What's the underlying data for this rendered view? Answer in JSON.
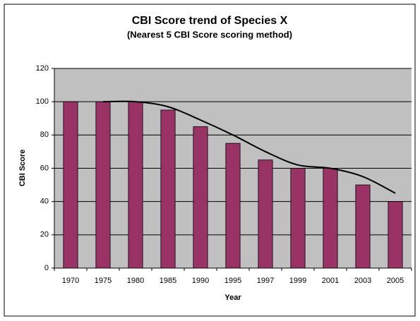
{
  "chart_data": {
    "type": "bar",
    "title": "CBI Score trend of Species X",
    "subtitle": "(Nearest 5 CBI Score scoring method)",
    "x_label": "Year",
    "y_label": "CBI Score",
    "categories": [
      "1970",
      "1975",
      "1980",
      "1985",
      "1990",
      "1995",
      "1997",
      "1999",
      "2001",
      "2003",
      "2005"
    ],
    "series": [
      {
        "type": "bar",
        "color": "#993366",
        "values": [
          100,
          100,
          100,
          95,
          85,
          75,
          65,
          60,
          60,
          50,
          40
        ]
      },
      {
        "type": "line",
        "color": "#000000",
        "values": [
          null,
          100,
          100,
          97,
          89,
          80,
          70,
          62,
          60,
          55,
          45
        ]
      }
    ],
    "ylim": [
      0,
      120
    ],
    "yticks": [
      0,
      20,
      40,
      60,
      80,
      100,
      120
    ],
    "grid": true
  }
}
